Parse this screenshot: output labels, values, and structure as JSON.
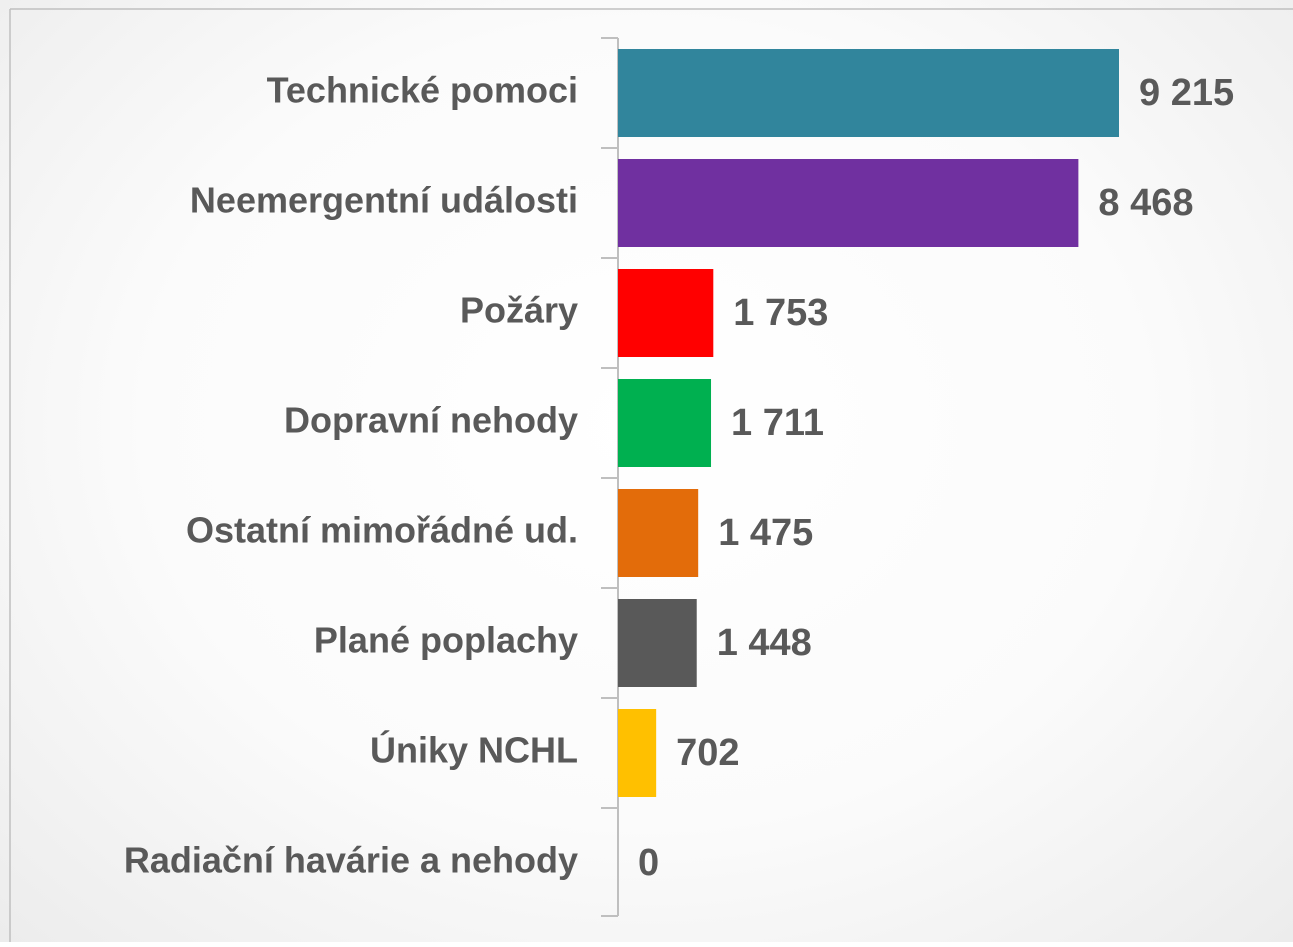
{
  "chart_data": {
    "type": "bar",
    "orientation": "horizontal",
    "categories": [
      "Technické pomoci",
      "Neemergentní události",
      "Požáry",
      "Dopravní nehody",
      "Ostatní mimořádné ud.",
      "Plané poplachy",
      "Úniky NCHL",
      "Radiační havárie a nehody"
    ],
    "values": [
      9215,
      8468,
      1753,
      1711,
      1475,
      1448,
      702,
      0
    ],
    "value_labels": [
      "9 215",
      "8 468",
      "1 753",
      "1 711",
      "1 475",
      "1 448",
      "702",
      "0"
    ],
    "colors": [
      "#31859c",
      "#7030a0",
      "#ff0000",
      "#00b050",
      "#e36c0a",
      "#595959",
      "#ffc000",
      "#4472c4"
    ]
  }
}
